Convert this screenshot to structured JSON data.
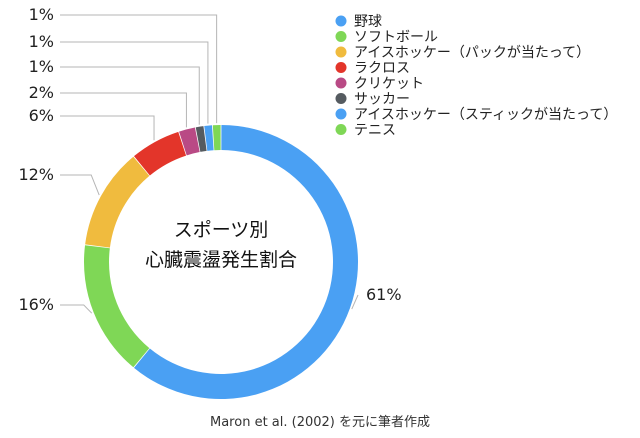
{
  "chart_data": {
    "type": "pie",
    "donut": true,
    "center_title": "スポーツ別",
    "center_subtitle": "心臓震盪発生割合",
    "source": "Maron et al. (2002) を元に筆者作成",
    "slices": [
      {
        "name": "野球",
        "value": 61,
        "label": "61%",
        "color": "#4aa0f3"
      },
      {
        "name": "ソフトボール",
        "value": 16,
        "label": "16%",
        "color": "#7fd756"
      },
      {
        "name": "アイスホッケー（パックが当たって）",
        "value": 12,
        "label": "12%",
        "color": "#f0bb3e"
      },
      {
        "name": "ラクロス",
        "value": 6,
        "label": "6%",
        "color": "#e3352a"
      },
      {
        "name": "クリケット",
        "value": 2,
        "label": "2%",
        "color": "#b94a85"
      },
      {
        "name": "サッカー",
        "value": 1,
        "label": "1%",
        "color": "#555b60"
      },
      {
        "name": "アイスホッケー（スティックが当たって）",
        "value": 1,
        "label": "1%",
        "color": "#4aa0f3"
      },
      {
        "name": "テニス",
        "value": 1,
        "label": "1%",
        "color": "#7fd756"
      }
    ],
    "legend_position": "top-right"
  }
}
